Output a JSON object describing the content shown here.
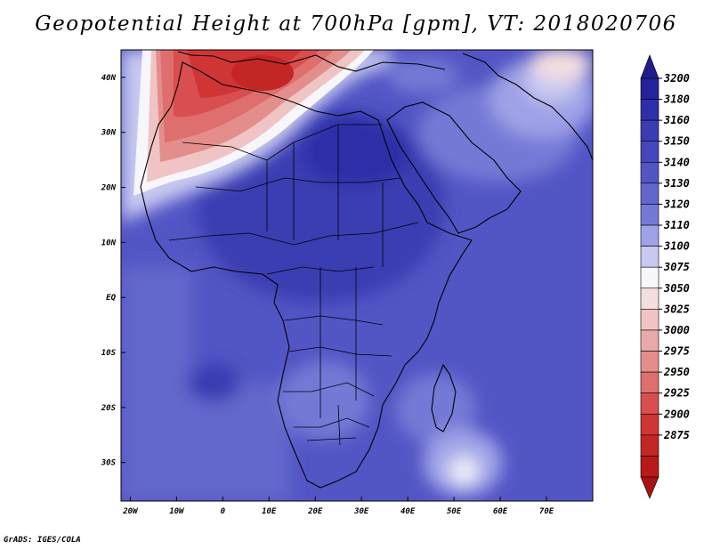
{
  "title": "Geopotential Height at 700hPa [gpm], VT: 2018020706",
  "credit": "GrADS: IGES/COLA",
  "map": {
    "lon_range": [
      -22,
      80
    ],
    "lat_range": [
      -37,
      45
    ],
    "lon_ticks": [
      {
        "value": -20,
        "label": "20W"
      },
      {
        "value": -10,
        "label": "10W"
      },
      {
        "value": 0,
        "label": "0"
      },
      {
        "value": 10,
        "label": "10E"
      },
      {
        "value": 20,
        "label": "20E"
      },
      {
        "value": 30,
        "label": "30E"
      },
      {
        "value": 40,
        "label": "40E"
      },
      {
        "value": 50,
        "label": "50E"
      },
      {
        "value": 60,
        "label": "60E"
      },
      {
        "value": 70,
        "label": "70E"
      }
    ],
    "lat_ticks": [
      {
        "value": 40,
        "label": "40N"
      },
      {
        "value": 30,
        "label": "30N"
      },
      {
        "value": 20,
        "label": "20N"
      },
      {
        "value": 10,
        "label": "10N"
      },
      {
        "value": 0,
        "label": "EQ"
      },
      {
        "value": -10,
        "label": "10S"
      },
      {
        "value": -20,
        "label": "20S"
      },
      {
        "value": -30,
        "label": "30S"
      }
    ]
  },
  "colorbar": {
    "levels": [
      "3200",
      "3180",
      "3160",
      "3150",
      "3140",
      "3130",
      "3120",
      "3110",
      "3100",
      "3075",
      "3050",
      "3025",
      "3000",
      "2975",
      "2950",
      "2925",
      "2900",
      "2875"
    ],
    "colors": [
      "#24239c",
      "#2d2fa8",
      "#3a3db2",
      "#4548bd",
      "#5255c4",
      "#6367cc",
      "#7579d6",
      "#9fa2e6",
      "#c7c9f1",
      "#f6f6fb",
      "#f4dede",
      "#f0c4c4",
      "#eaa9a9",
      "#e48d8d",
      "#df6e6e",
      "#d94e4e",
      "#d03535",
      "#c42626",
      "#b81a1a"
    ]
  }
}
